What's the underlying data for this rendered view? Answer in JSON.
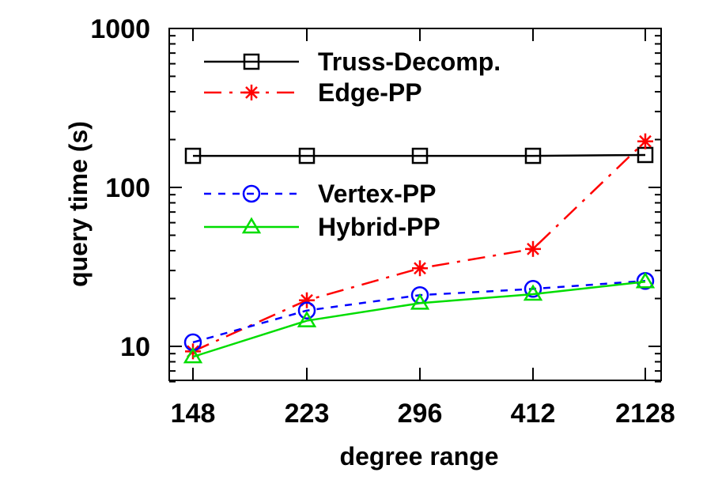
{
  "chart_data": {
    "type": "line",
    "title": "",
    "xlabel": "degree range",
    "ylabel": "query time (s)",
    "y_scale": "log",
    "ylim": [
      6,
      1000
    ],
    "y_ticks": [
      10,
      100,
      1000
    ],
    "y_tick_labels": [
      "10",
      "100",
      "1000"
    ],
    "categories": [
      "148",
      "223",
      "296",
      "412",
      "2128"
    ],
    "grid": false,
    "legend_placement": "inside, upper-left (two groups)",
    "series": [
      {
        "name": "Truss-Decomp.",
        "color": "#000000",
        "marker": "square",
        "dash": "solid",
        "values": [
          158,
          158,
          158,
          158,
          160
        ]
      },
      {
        "name": "Edge-PP",
        "color": "#ff0000",
        "marker": "star",
        "dash": "dash-dot",
        "values": [
          9.3,
          19.5,
          31,
          41,
          195
        ]
      },
      {
        "name": "Vertex-PP",
        "color": "#0000ff",
        "marker": "circle",
        "dash": "dashed",
        "values": [
          10.6,
          16.8,
          21,
          23,
          25.8
        ]
      },
      {
        "name": "Hybrid-PP",
        "color": "#00dd00",
        "marker": "triangle",
        "dash": "solid",
        "values": [
          8.6,
          14.5,
          18.7,
          21.3,
          25.5
        ]
      }
    ]
  }
}
